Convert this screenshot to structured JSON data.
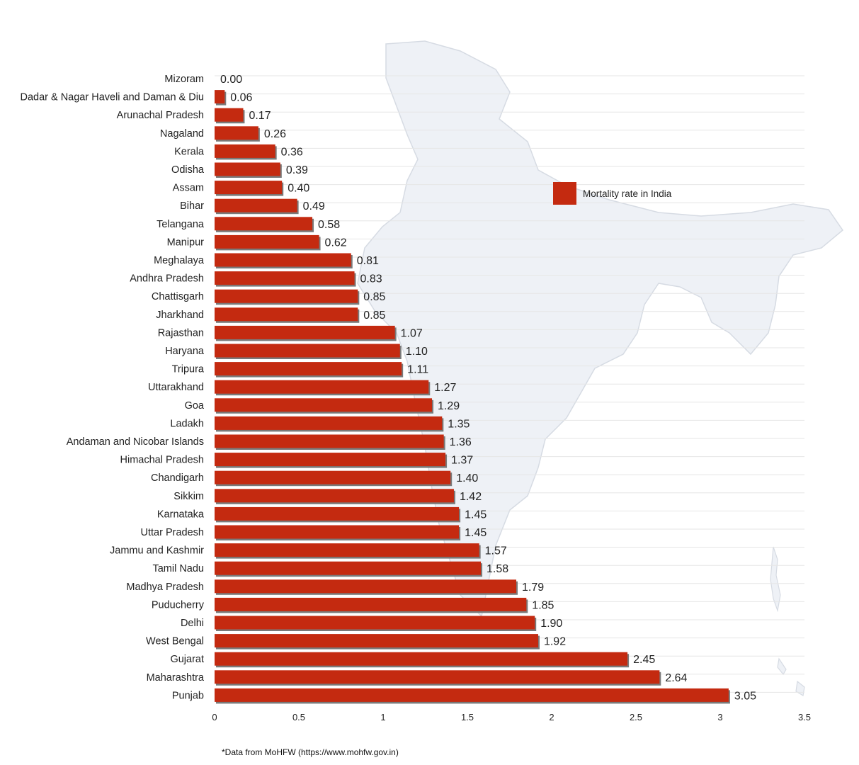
{
  "colors": {
    "bar": "#c42a10",
    "bar_shadow": "#7a7a7a",
    "grid": "#e6e6e6",
    "map": "#eef1f6",
    "map_stroke": "#d6dbe3"
  },
  "note": "*Data from MoHFW (https://www.mohfw.gov.in)",
  "chart_data": {
    "type": "bar",
    "orientation": "horizontal",
    "title": "",
    "xlabel": "",
    "ylabel": "",
    "xlim": [
      0,
      3.5
    ],
    "xticks": [
      "0",
      "0.5",
      "1",
      "1.5",
      "2",
      "2.5",
      "3",
      "3.5"
    ],
    "grid": true,
    "legend_position": "right",
    "background_image": "india-map",
    "series": [
      {
        "name": "Mortality rate in India",
        "categories": [
          "Mizoram",
          "Dadar & Nagar Haveli and Daman & Diu",
          "Arunachal Pradesh",
          "Nagaland",
          "Kerala",
          "Odisha",
          "Assam",
          "Bihar",
          "Telangana",
          "Manipur",
          "Meghalaya",
          "Andhra Pradesh",
          "Chattisgarh",
          "Jharkhand",
          "Rajasthan",
          "Haryana",
          "Tripura",
          "Uttarakhand",
          "Goa",
          "Ladakh",
          "Andaman and Nicobar Islands",
          "Himachal Pradesh",
          "Chandigarh",
          "Sikkim",
          "Karnataka",
          "Uttar Pradesh",
          "Jammu and Kashmir",
          "Tamil Nadu",
          "Madhya Pradesh",
          "Puducherry",
          "Delhi",
          "West Bengal",
          "Gujarat",
          "Maharashtra",
          "Punjab"
        ],
        "values": [
          0.0,
          0.06,
          0.17,
          0.26,
          0.36,
          0.39,
          0.4,
          0.49,
          0.58,
          0.62,
          0.81,
          0.83,
          0.85,
          0.85,
          1.07,
          1.1,
          1.11,
          1.27,
          1.29,
          1.35,
          1.36,
          1.37,
          1.4,
          1.42,
          1.45,
          1.45,
          1.57,
          1.58,
          1.79,
          1.85,
          1.9,
          1.92,
          2.45,
          2.64,
          3.05
        ],
        "labels": [
          "0.00",
          "0.06",
          "0.17",
          "0.26",
          "0.36",
          "0.39",
          "0.40",
          "0.49",
          "0.58",
          "0.62",
          "0.81",
          "0.83",
          "0.85",
          "0.85",
          "1.07",
          "1.10",
          "1.11",
          "1.27",
          "1.29",
          "1.35",
          "1.36",
          "1.37",
          "1.40",
          "1.42",
          "1.45",
          "1.45",
          "1.57",
          "1.58",
          "1.79",
          "1.85",
          "1.90",
          "1.92",
          "2.45",
          "2.64",
          "3.05"
        ]
      }
    ]
  }
}
